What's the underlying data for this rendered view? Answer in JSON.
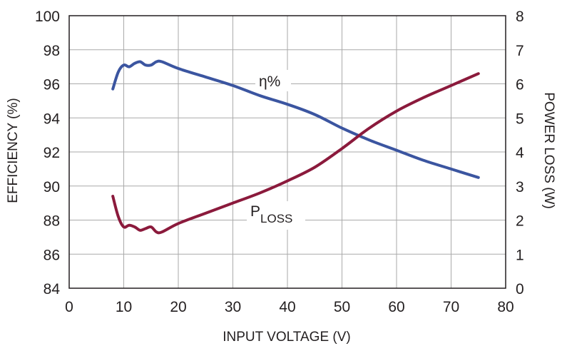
{
  "chart_data": {
    "type": "line",
    "xlabel": "INPUT VOLTAGE (V)",
    "ylabel_left": "EFFICIENCY (%)",
    "ylabel_right": "POWER LOSS (W)",
    "xlim": [
      0,
      80
    ],
    "ylim_left": [
      84,
      100
    ],
    "ylim_right": [
      0,
      8
    ],
    "x_ticks": [
      0,
      10,
      20,
      30,
      40,
      50,
      60,
      70,
      80
    ],
    "y_ticks_left": [
      84,
      86,
      88,
      90,
      92,
      94,
      96,
      98,
      100
    ],
    "y_ticks_right": [
      0,
      1,
      2,
      3,
      4,
      5,
      6,
      7,
      8
    ],
    "grid": true,
    "series": [
      {
        "name": "η%",
        "axis": "left",
        "color": "#3b55a0",
        "x": [
          8,
          9,
          10,
          11,
          12,
          13,
          14,
          15,
          16,
          17,
          20,
          25,
          30,
          35,
          40,
          45,
          50,
          55,
          60,
          65,
          70,
          75
        ],
        "y": [
          95.7,
          96.7,
          97.1,
          97.0,
          97.2,
          97.3,
          97.1,
          97.1,
          97.3,
          97.3,
          96.9,
          96.4,
          95.9,
          95.3,
          94.8,
          94.2,
          93.4,
          92.7,
          92.1,
          91.5,
          91.0,
          90.5
        ]
      },
      {
        "name": "PLOSS",
        "axis": "right",
        "color": "#8b1a3c",
        "x": [
          8,
          9,
          10,
          11,
          12,
          13,
          14,
          15,
          16,
          17,
          20,
          25,
          30,
          35,
          40,
          45,
          50,
          55,
          60,
          65,
          70,
          75
        ],
        "y": [
          2.7,
          2.1,
          1.8,
          1.85,
          1.8,
          1.7,
          1.75,
          1.8,
          1.65,
          1.65,
          1.9,
          2.2,
          2.5,
          2.8,
          3.15,
          3.55,
          4.1,
          4.7,
          5.2,
          5.6,
          5.95,
          6.3
        ]
      }
    ]
  },
  "labels": {
    "eta": "η%",
    "ploss_main": "P",
    "ploss_sub": "LOSS"
  }
}
